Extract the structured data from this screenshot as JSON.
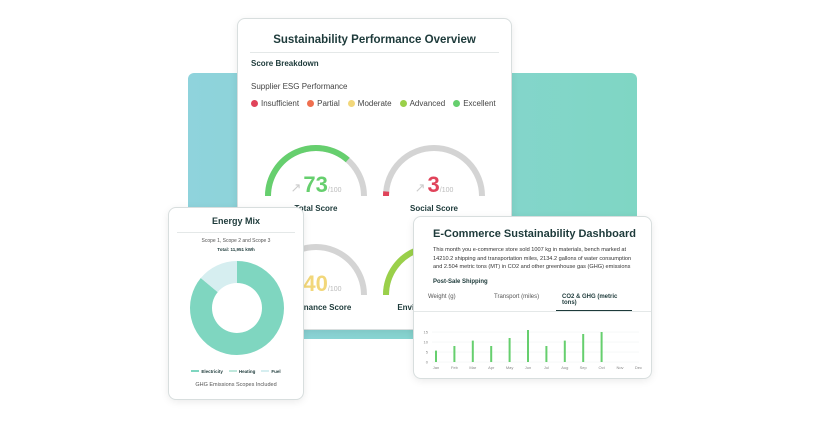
{
  "overview": {
    "title": "Sustainability Performance Overview",
    "section": "Score Breakdown",
    "subtitle": "Supplier ESG Performance",
    "legend": [
      {
        "label": "Insufficient",
        "color": "#e0435a"
      },
      {
        "label": "Partial",
        "color": "#ef6f4f"
      },
      {
        "label": "Moderate",
        "color": "#f2d77a"
      },
      {
        "label": "Advanced",
        "color": "#9ad04a"
      },
      {
        "label": "Excellent",
        "color": "#66cf6e"
      }
    ],
    "gauges": [
      {
        "label": "Total Score",
        "value": "73",
        "max": "/100",
        "score": 73,
        "color": "#66cf6e"
      },
      {
        "label": "Social Score",
        "value": "3",
        "max": "/100",
        "score": 3,
        "color": "#e0435a"
      },
      {
        "label": "Governance Score",
        "value": "40",
        "max": "/100",
        "score": 40,
        "color": "#f2d77a"
      },
      {
        "label": "Environment Score",
        "value": "",
        "max": "",
        "score": 80,
        "color": "#9ad04a"
      }
    ]
  },
  "energy": {
    "title": "Energy Mix",
    "subtitle": "Scope 1, Scope 2 and Scope 3",
    "total": "Total: 11,951 kWh",
    "slices": [
      {
        "label": "Electricity",
        "value": 86,
        "color": "#7fd6c0"
      },
      {
        "label": "Heating",
        "value": 0,
        "color": "#bfe8dc"
      },
      {
        "label": "Fuel",
        "value": 14,
        "color": "#d6eef0"
      }
    ],
    "footer": "GHG Emissions Scopes Included"
  },
  "ecommerce": {
    "title": "E-Commerce Sustainability Dashboard",
    "description": "This month you e-commerce store sold 1007 kg in materials, bench marked at 14210.2 shipping and transportation miles, 2134.2 gallons of water consumption and 2.504 metric tons (MT) in CO2 and other greenhouse gas (GHG) emissions",
    "section": "Post-Sale Shipping",
    "tabs": [
      "Weight (g)",
      "Transport (miles)",
      "CO2 & GHG (metric tons)"
    ],
    "active_tab": 2
  },
  "chart_data": {
    "type": "bar",
    "categories": [
      "Jan",
      "Feb",
      "Mar",
      "Apr",
      "May",
      "Jun",
      "Jul",
      "Aug",
      "Sep",
      "Oct",
      "Nov",
      "Dec"
    ],
    "values": [
      5.7,
      8,
      10.7,
      8,
      12,
      16,
      8,
      10.7,
      14,
      15,
      0,
      0
    ],
    "yticks": [
      "15",
      "10",
      "5",
      "0"
    ],
    "ylim": [
      0,
      15
    ],
    "color": "#66cf6e",
    "grid": true
  }
}
